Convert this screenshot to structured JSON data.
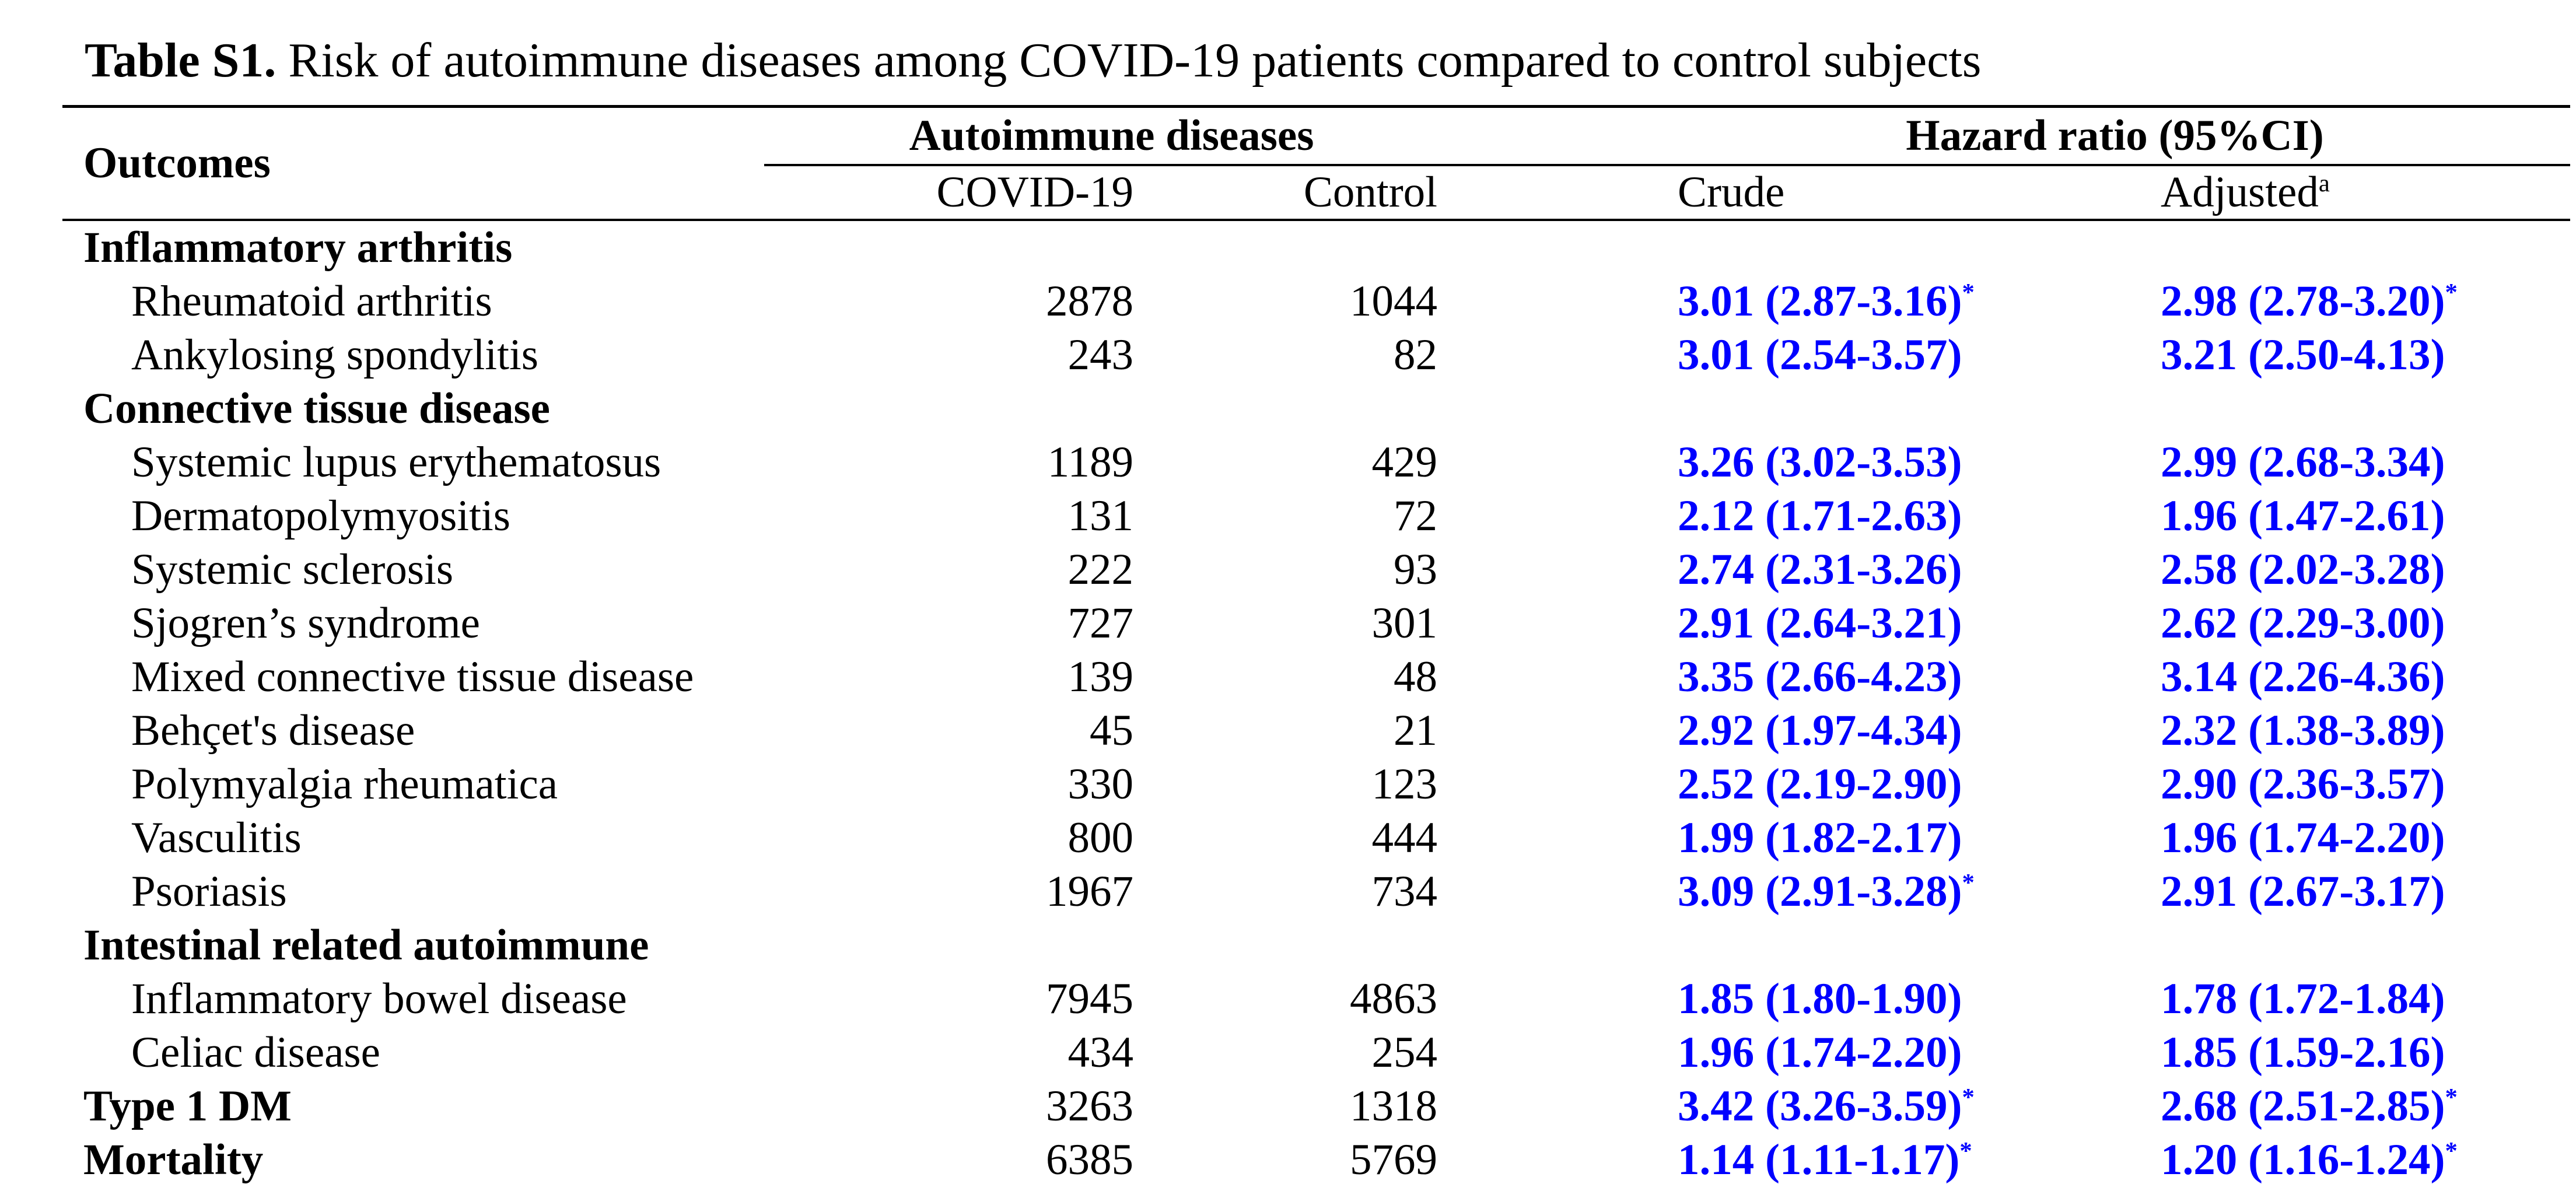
{
  "colors": {
    "hazard_ratio_text": "#0000FF",
    "text": "#000000",
    "rule": "#000000"
  },
  "caption": {
    "label": "Table S1.",
    "text": " Risk of autoimmune diseases among COVID-19 patients compared to control subjects"
  },
  "table": {
    "header": {
      "outcomes": "Outcomes",
      "group_autoimmune": "Autoimmune diseases",
      "group_hazard": "Hazard ratio (95%CI)",
      "covid": "COVID-19",
      "control": "Control",
      "crude": "Crude",
      "adjusted": "Adjusted",
      "adjusted_mark": "a"
    },
    "rows": [
      {
        "outcome": "Inflammatory arthritis",
        "section": true,
        "indent": false,
        "covid": "",
        "control": "",
        "crude": "",
        "crude_mark": "",
        "adjusted": "",
        "adjusted_mark": ""
      },
      {
        "outcome": "Rheumatoid arthritis",
        "section": false,
        "indent": true,
        "covid": "2878",
        "control": "1044",
        "crude": "3.01 (2.87-3.16)",
        "crude_mark": "*",
        "adjusted": "2.98 (2.78-3.20)",
        "adjusted_mark": "*"
      },
      {
        "outcome": "Ankylosing spondylitis",
        "section": false,
        "indent": true,
        "covid": "243",
        "control": "82",
        "crude": "3.01 (2.54-3.57)",
        "crude_mark": "",
        "adjusted": "3.21 (2.50-4.13)",
        "adjusted_mark": ""
      },
      {
        "outcome": "Connective tissue disease",
        "section": true,
        "indent": false,
        "covid": "",
        "control": "",
        "crude": "",
        "crude_mark": "",
        "adjusted": "",
        "adjusted_mark": ""
      },
      {
        "outcome": "Systemic lupus erythematosus",
        "section": false,
        "indent": true,
        "covid": "1189",
        "control": "429",
        "crude": "3.26 (3.02-3.53)",
        "crude_mark": "",
        "adjusted": "2.99 (2.68-3.34)",
        "adjusted_mark": ""
      },
      {
        "outcome": "Dermatopolymyositis",
        "section": false,
        "indent": true,
        "covid": "131",
        "control": "72",
        "crude": "2.12 (1.71-2.63)",
        "crude_mark": "",
        "adjusted": "1.96 (1.47-2.61)",
        "adjusted_mark": ""
      },
      {
        "outcome": "Systemic sclerosis",
        "section": false,
        "indent": true,
        "covid": "222",
        "control": "93",
        "crude": "2.74 (2.31-3.26)",
        "crude_mark": "",
        "adjusted": "2.58 (2.02-3.28)",
        "adjusted_mark": ""
      },
      {
        "outcome": "Sjogren’s syndrome",
        "section": false,
        "indent": true,
        "covid": "727",
        "control": "301",
        "crude": "2.91 (2.64-3.21)",
        "crude_mark": "",
        "adjusted": "2.62 (2.29-3.00)",
        "adjusted_mark": ""
      },
      {
        "outcome": "Mixed connective tissue disease",
        "section": false,
        "indent": true,
        "covid": "139",
        "control": "48",
        "crude": "3.35 (2.66-4.23)",
        "crude_mark": "",
        "adjusted": "3.14 (2.26-4.36)",
        "adjusted_mark": ""
      },
      {
        "outcome": "Behçet's disease",
        "section": false,
        "indent": true,
        "covid": "45",
        "control": "21",
        "crude": "2.92 (1.97-4.34)",
        "crude_mark": "",
        "adjusted": "2.32 (1.38-3.89)",
        "adjusted_mark": ""
      },
      {
        "outcome": "Polymyalgia rheumatica",
        "section": false,
        "indent": true,
        "covid": "330",
        "control": "123",
        "crude": "2.52 (2.19-2.90)",
        "crude_mark": "",
        "adjusted": "2.90 (2.36-3.57)",
        "adjusted_mark": ""
      },
      {
        "outcome": "Vasculitis",
        "section": false,
        "indent": true,
        "covid": "800",
        "control": "444",
        "crude": "1.99 (1.82-2.17)",
        "crude_mark": "",
        "adjusted": "1.96 (1.74-2.20)",
        "adjusted_mark": ""
      },
      {
        "outcome": "Psoriasis",
        "section": false,
        "indent": true,
        "covid": "1967",
        "control": "734",
        "crude": "3.09 (2.91-3.28)",
        "crude_mark": "*",
        "adjusted": "2.91 (2.67-3.17)",
        "adjusted_mark": ""
      },
      {
        "outcome": "Intestinal related autoimmune",
        "section": true,
        "indent": false,
        "covid": "",
        "control": "",
        "crude": "",
        "crude_mark": "",
        "adjusted": "",
        "adjusted_mark": ""
      },
      {
        "outcome": "Inflammatory bowel disease",
        "section": false,
        "indent": true,
        "covid": "7945",
        "control": "4863",
        "crude": "1.85 (1.80-1.90)",
        "crude_mark": "",
        "adjusted": "1.78 (1.72-1.84)",
        "adjusted_mark": ""
      },
      {
        "outcome": "Celiac disease",
        "section": false,
        "indent": true,
        "covid": "434",
        "control": "254",
        "crude": "1.96 (1.74-2.20)",
        "crude_mark": "",
        "adjusted": "1.85 (1.59-2.16)",
        "adjusted_mark": ""
      },
      {
        "outcome": "Type 1 DM",
        "section": true,
        "indent": false,
        "covid": "3263",
        "control": "1318",
        "crude": "3.42 (3.26-3.59)",
        "crude_mark": "*",
        "adjusted": "2.68 (2.51-2.85)",
        "adjusted_mark": "*"
      },
      {
        "outcome": "Mortality",
        "section": true,
        "indent": false,
        "covid": "6385",
        "control": "5769",
        "crude": "1.14 (1.11-1.17)",
        "crude_mark": "*",
        "adjusted": "1.20 (1.16-1.24)",
        "adjusted_mark": "*"
      }
    ]
  }
}
